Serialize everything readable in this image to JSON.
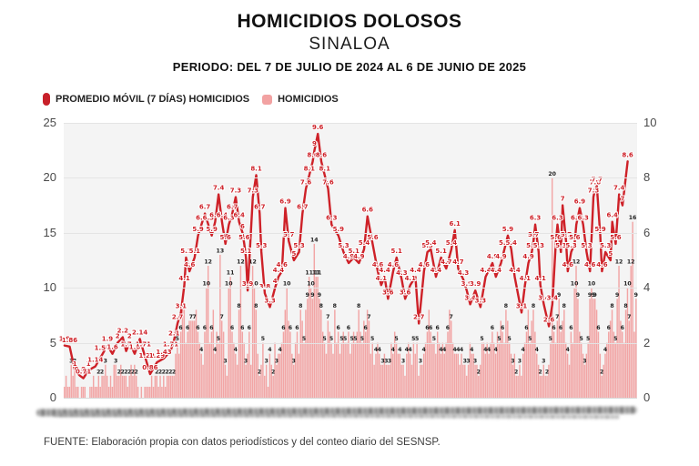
{
  "header": {
    "title": "HOMICIDIOS DOLOSOS",
    "subtitle": "SINALOA",
    "period": "PERIODO: DEL 7 DE JULIO DE 2024 AL 6 DE JUNIO DE 2025"
  },
  "legend": [
    {
      "label": "PROMEDIO MÓVIL (7 DÍAS) HOMICIDIOS",
      "color": "#c8202a",
      "shape": "pill"
    },
    {
      "label": "HOMICIDIOS",
      "color": "#f2a2a2",
      "shape": "square"
    }
  ],
  "footer": {
    "source": "FUENTE: Elaboración propia con datos periodísticos y del conteo diario del SESNSP."
  },
  "axes": {
    "left_ticks": [
      25,
      20,
      15,
      10,
      5,
      0
    ],
    "right_ticks": [
      10,
      8,
      6,
      4,
      2,
      0
    ],
    "left_range": [
      0,
      25
    ],
    "right_range": [
      0,
      10
    ]
  },
  "colors": {
    "bar": "#f2a5a5",
    "line": "#ce2128",
    "plot_bg": "#f4f4f4",
    "grid": "#e4e4e4"
  },
  "chart_data": {
    "type": "bar",
    "title": "HOMICIDIOS DOLOSOS",
    "subtitle": "SINALOA",
    "period": "PERIODO: DEL 7 DE JULIO DE 2024 AL 6 DE JUNIO DE 2025",
    "n_days": 335,
    "left_axis": {
      "range": [
        0,
        25
      ],
      "ticks": [
        25,
        20,
        15,
        10,
        5,
        0
      ],
      "series": "HOMICIDIOS"
    },
    "right_axis": {
      "range": [
        0,
        10
      ],
      "ticks": [
        10,
        8,
        6,
        4,
        2,
        0
      ],
      "series": "PROMEDIO MÓVIL (7 DÍAS) HOMICIDIOS"
    },
    "series": [
      {
        "name": "HOMICIDIOS",
        "type": "bar",
        "axis": "left",
        "color": "#f2a5a5",
        "values": [
          1,
          2,
          1,
          1,
          3,
          2,
          3,
          1,
          1,
          0,
          1,
          1,
          1,
          0,
          0,
          1,
          1,
          2,
          1,
          1,
          2,
          1,
          2,
          2,
          3,
          2,
          1,
          2,
          1,
          3,
          3,
          2,
          2,
          3,
          2,
          2,
          2,
          1,
          2,
          3,
          2,
          3,
          2,
          1,
          0,
          1,
          0,
          1,
          1,
          1,
          1,
          2,
          1,
          2,
          2,
          1,
          2,
          1,
          2,
          1,
          2,
          2,
          2,
          2,
          2,
          4,
          5,
          4,
          6,
          8,
          8,
          5,
          6,
          7,
          7,
          7,
          7,
          8,
          6,
          5,
          4,
          3,
          6,
          10,
          12,
          5,
          6,
          8,
          4,
          6,
          5,
          13,
          7,
          6,
          3,
          2,
          10,
          11,
          6,
          5,
          4,
          3,
          8,
          12,
          6,
          5,
          3,
          4,
          6,
          3,
          12,
          10,
          8,
          4,
          2,
          3,
          5,
          2,
          3,
          1,
          4,
          3,
          2,
          5,
          3,
          4,
          4,
          5,
          6,
          8,
          10,
          7,
          6,
          4,
          3,
          5,
          6,
          4,
          8,
          7,
          5,
          8,
          9,
          11,
          10,
          9,
          14,
          11,
          11,
          9,
          8,
          6,
          5,
          4,
          7,
          6,
          5,
          4,
          8,
          5,
          6,
          4,
          5,
          6,
          5,
          5,
          6,
          4,
          5,
          6,
          5,
          6,
          8,
          6,
          5,
          7,
          6,
          8,
          7,
          4,
          5,
          3,
          4,
          5,
          4,
          3,
          3,
          4,
          3,
          3,
          3,
          5,
          4,
          6,
          5,
          4,
          4,
          3,
          3,
          2,
          4,
          5,
          4,
          3,
          5,
          4,
          5,
          2,
          3,
          3,
          4,
          5,
          6,
          8,
          6,
          5,
          5,
          4,
          6,
          5,
          4,
          5,
          4,
          5,
          6,
          8,
          7,
          5,
          4,
          4,
          4,
          3,
          4,
          3,
          3,
          2,
          3,
          5,
          4,
          4,
          3,
          3,
          2,
          3,
          5,
          5,
          4,
          5,
          4,
          5,
          6,
          5,
          4,
          6,
          5,
          7,
          6,
          5,
          8,
          7,
          5,
          4,
          3,
          4,
          2,
          2,
          3,
          2,
          4,
          5,
          6,
          8,
          5,
          7,
          8,
          6,
          4,
          3,
          2,
          2,
          3,
          2,
          2,
          3,
          5,
          20,
          6,
          5,
          7,
          9,
          6,
          7,
          8,
          5,
          4,
          3,
          6,
          5,
          10,
          12,
          9,
          6,
          5,
          4,
          3,
          4,
          5,
          9,
          10,
          9,
          9,
          8,
          6,
          4,
          2,
          3,
          4,
          5,
          6,
          7,
          8,
          6,
          5,
          9,
          12,
          7,
          6,
          5,
          8,
          10,
          7,
          12,
          16,
          6,
          9
        ]
      },
      {
        "name": "PROMEDIO MÓVIL (7 DÍAS) HOMICIDIOS",
        "type": "line",
        "axis": "right",
        "color": "#ce2128",
        "points": [
          [
            0,
            1.9
          ],
          [
            3,
            1.86
          ],
          [
            6,
            1
          ],
          [
            9,
            0.8
          ],
          [
            11,
            0.71
          ],
          [
            14,
            1
          ],
          [
            18,
            1.14
          ],
          [
            22,
            1.57
          ],
          [
            25,
            1.9
          ],
          [
            28,
            1.6
          ],
          [
            31,
            2
          ],
          [
            34,
            2.2
          ],
          [
            36,
            1.7
          ],
          [
            38,
            2
          ],
          [
            41,
            1.6
          ],
          [
            44,
            2.14
          ],
          [
            46,
            1.71
          ],
          [
            48,
            1.29
          ],
          [
            50,
            0.86
          ],
          [
            54,
            1.29
          ],
          [
            58,
            1.43
          ],
          [
            62,
            1.71
          ],
          [
            64,
            2.1
          ],
          [
            66,
            2.7
          ],
          [
            68,
            3.1
          ],
          [
            70,
            4.1
          ],
          [
            71,
            5.1
          ],
          [
            73,
            4.6
          ],
          [
            76,
            5.1
          ],
          [
            78,
            5.9
          ],
          [
            80,
            6.3
          ],
          [
            82,
            6.7
          ],
          [
            84,
            6.3
          ],
          [
            86,
            5.9
          ],
          [
            88,
            6.4
          ],
          [
            90,
            7.4
          ],
          [
            92,
            6.4
          ],
          [
            94,
            5.6
          ],
          [
            96,
            6.3
          ],
          [
            98,
            6.7
          ],
          [
            100,
            7.3
          ],
          [
            102,
            6.4
          ],
          [
            104,
            6
          ],
          [
            105,
            5.6
          ],
          [
            106,
            5.1
          ],
          [
            107,
            3.9
          ],
          [
            110,
            7.3
          ],
          [
            112,
            8.1
          ],
          [
            114,
            6.7
          ],
          [
            115,
            5.3
          ],
          [
            117,
            3.8
          ],
          [
            120,
            3.3
          ],
          [
            123,
            4
          ],
          [
            125,
            4.4
          ],
          [
            127,
            4.6
          ],
          [
            129,
            6.9
          ],
          [
            131,
            5.7
          ],
          [
            134,
            5
          ],
          [
            137,
            5.3
          ],
          [
            139,
            6.7
          ],
          [
            141,
            7.6
          ],
          [
            143,
            8.1
          ],
          [
            145,
            8.6
          ],
          [
            146,
            9
          ],
          [
            148,
            9.6
          ],
          [
            150,
            8.6
          ],
          [
            152,
            8.1
          ],
          [
            154,
            7.6
          ],
          [
            156,
            6.3
          ],
          [
            160,
            5.9
          ],
          [
            163,
            5.3
          ],
          [
            166,
            4.9
          ],
          [
            169,
            5.1
          ],
          [
            172,
            4.9
          ],
          [
            175,
            5.4
          ],
          [
            177,
            6.6
          ],
          [
            180,
            5.6
          ],
          [
            183,
            4.6
          ],
          [
            185,
            4.1
          ],
          [
            187,
            4.4
          ],
          [
            189,
            3.6
          ],
          [
            192,
            4.6
          ],
          [
            194,
            5.1
          ],
          [
            197,
            4.3
          ],
          [
            199,
            3.6
          ],
          [
            202,
            4.1
          ],
          [
            205,
            4.4
          ],
          [
            207,
            2.7
          ],
          [
            210,
            4.6
          ],
          [
            212,
            5.3
          ],
          [
            214,
            5.4
          ],
          [
            217,
            4.4
          ],
          [
            220,
            5.1
          ],
          [
            223,
            4.7
          ],
          [
            226,
            5.4
          ],
          [
            228,
            6.1
          ],
          [
            230,
            4.7
          ],
          [
            233,
            4.3
          ],
          [
            235,
            3.9
          ],
          [
            237,
            3.4
          ],
          [
            240,
            3.9
          ],
          [
            243,
            3.3
          ],
          [
            246,
            4.4
          ],
          [
            250,
            4.9
          ],
          [
            252,
            4.4
          ],
          [
            255,
            4.9
          ],
          [
            257,
            5.4
          ],
          [
            259,
            5.9
          ],
          [
            261,
            5.4
          ],
          [
            263,
            4.4
          ],
          [
            267,
            3.1
          ],
          [
            269,
            4.1
          ],
          [
            271,
            4.9
          ],
          [
            273,
            5.3
          ],
          [
            274,
            5.7
          ],
          [
            275,
            6.3
          ],
          [
            277,
            5.3
          ],
          [
            278,
            4.1
          ],
          [
            280,
            3.4
          ],
          [
            283,
            2.6
          ],
          [
            285,
            3.4
          ],
          [
            287,
            5.6
          ],
          [
            288,
            6.3
          ],
          [
            290,
            5.3
          ],
          [
            291,
            7
          ],
          [
            293,
            5.7
          ],
          [
            294,
            4.6
          ],
          [
            296,
            5.3
          ],
          [
            298,
            5.6
          ],
          [
            299,
            6.3
          ],
          [
            301,
            6.9
          ],
          [
            303,
            6.3
          ],
          [
            305,
            5.3
          ],
          [
            307,
            4.6
          ],
          [
            309,
            7.3
          ],
          [
            310,
            7.6
          ],
          [
            311,
            7.7
          ],
          [
            313,
            5.9
          ],
          [
            314,
            4.6
          ],
          [
            316,
            5.3
          ],
          [
            319,
            5
          ],
          [
            320,
            6.4
          ],
          [
            322,
            5.6
          ],
          [
            324,
            7.4
          ],
          [
            326,
            7
          ],
          [
            329,
            8.6
          ]
        ]
      }
    ]
  }
}
